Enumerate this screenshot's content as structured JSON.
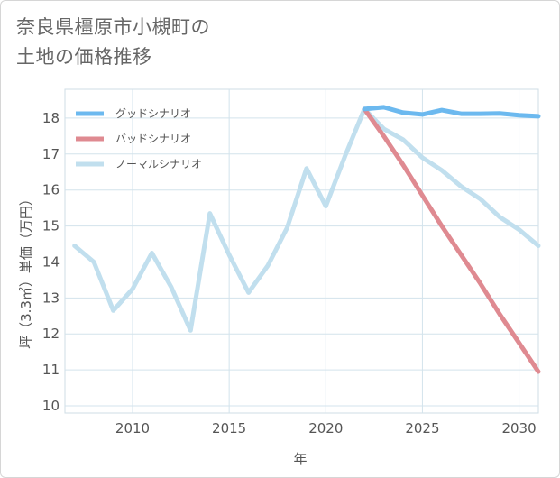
{
  "title": {
    "line1": "奈良県橿原市小槻町の",
    "line2": "土地の価格推移"
  },
  "chart_data": {
    "type": "line",
    "xlabel": "年",
    "ylabel": "坪（3.3㎡）単価（万円）",
    "xlim": [
      2006.5,
      2031
    ],
    "ylim": [
      9.8,
      18.8
    ],
    "xticks": [
      2010,
      2015,
      2020,
      2025,
      2030
    ],
    "yticks": [
      10,
      11,
      12,
      13,
      14,
      15,
      16,
      17,
      18
    ],
    "grid": true,
    "legend_position": "top-left",
    "series": [
      {
        "name": "グッドシナリオ",
        "color": "#6cb9ef",
        "x": [
          2022,
          2023,
          2024,
          2025,
          2026,
          2027,
          2028,
          2029,
          2030,
          2031
        ],
        "y": [
          18.25,
          18.3,
          18.15,
          18.1,
          18.22,
          18.12,
          18.12,
          18.13,
          18.08,
          18.05
        ]
      },
      {
        "name": "バッドシナリオ",
        "color": "#df8a91",
        "x": [
          2022,
          2023,
          2024,
          2025,
          2026,
          2027,
          2028,
          2029,
          2030,
          2031
        ],
        "y": [
          18.25,
          17.5,
          16.7,
          15.85,
          15.0,
          14.2,
          13.4,
          12.55,
          11.75,
          10.95
        ]
      },
      {
        "name": "ノーマルシナリオ",
        "color": "#c1dfee",
        "x": [
          2007,
          2008,
          2009,
          2010,
          2011,
          2012,
          2013,
          2014,
          2015,
          2016,
          2017,
          2018,
          2019,
          2020,
          2021,
          2022,
          2023,
          2024,
          2025,
          2026,
          2027,
          2028,
          2029,
          2030,
          2031
        ],
        "y": [
          14.45,
          14.0,
          12.65,
          13.25,
          14.25,
          13.3,
          12.1,
          15.35,
          14.2,
          13.15,
          13.9,
          14.95,
          16.6,
          15.55,
          16.95,
          18.25,
          17.7,
          17.4,
          16.9,
          16.55,
          16.1,
          15.75,
          15.25,
          14.9,
          14.45
        ]
      }
    ]
  }
}
